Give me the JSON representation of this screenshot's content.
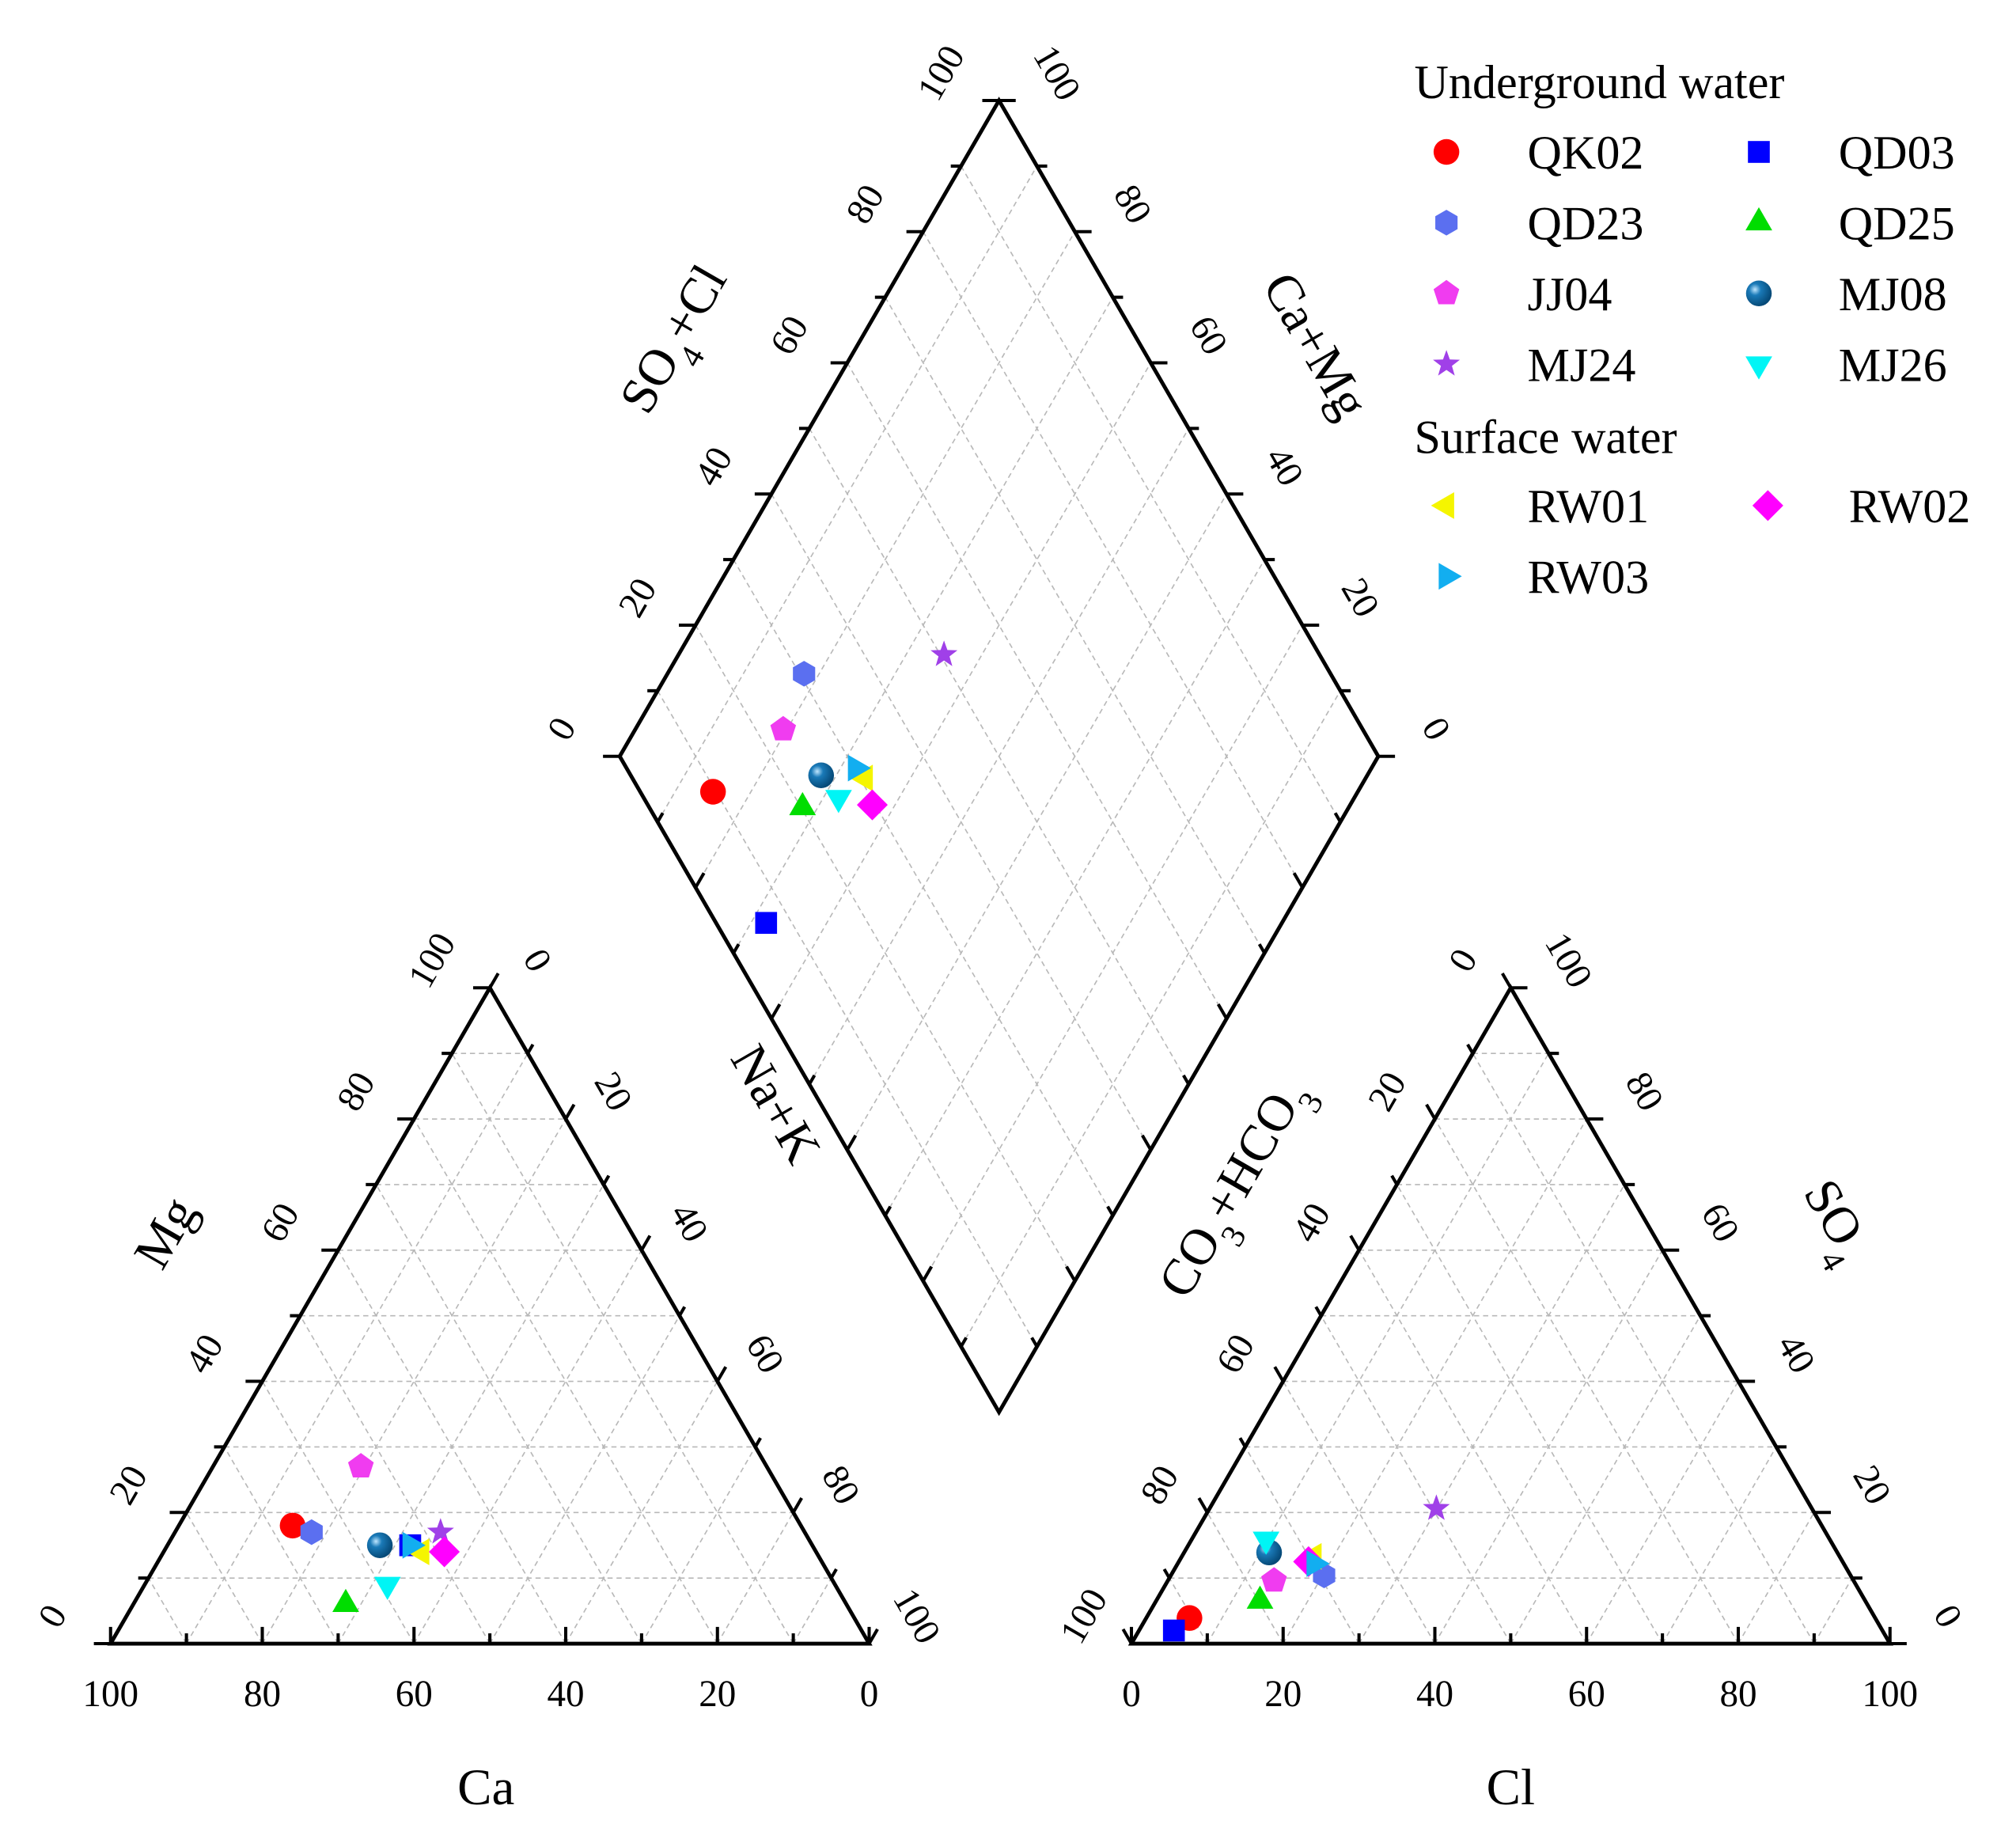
{
  "chart_data": {
    "type": "piper",
    "tick_labels": [
      "0",
      "20",
      "40",
      "60",
      "80",
      "100"
    ],
    "axes": {
      "cation_triangle": {
        "bottom": "Ca",
        "left": "Mg",
        "right": "Na+K"
      },
      "anion_triangle": {
        "bottom": "Cl",
        "left": "CO3+HCO3",
        "right": "SO4"
      },
      "diamond": {
        "upper_left": "SO4+Cl",
        "upper_right": "Ca+Mg"
      }
    },
    "legend": {
      "placement": "top-right",
      "groups": [
        {
          "title": "Underground water",
          "items": [
            "QK02",
            "QD03",
            "QD23",
            "QD25",
            "JJ04",
            "MJ08",
            "MJ24",
            "MJ26"
          ]
        },
        {
          "title": "Surface water",
          "items": [
            "RW01",
            "RW02",
            "RW03"
          ]
        }
      ]
    },
    "units": "percent of meq/L",
    "series": [
      {
        "name": "QK02",
        "marker": "circle",
        "color": "#ff0000",
        "Ca": 67,
        "Mg": 18,
        "NaK": 15,
        "CO3HCO3": 90.4,
        "SO4": 3.9,
        "Cl": 5.7
      },
      {
        "name": "QD03",
        "marker": "square",
        "color": "#0000ff",
        "Ca": 53,
        "Mg": 15,
        "NaK": 32,
        "CO3HCO3": 93.4,
        "SO4": 2.0,
        "Cl": 4.6
      },
      {
        "name": "QD23",
        "marker": "hexagon",
        "color": "#5b6ff0",
        "Ca": 65,
        "Mg": 17,
        "NaK": 18,
        "CO3HCO3": 69.4,
        "SO4": 10.4,
        "Cl": 20.2
      },
      {
        "name": "QD25",
        "marker": "triangle-up",
        "color": "#00dd00",
        "Ca": 66,
        "Mg": 6,
        "NaK": 28,
        "CO3HCO3": 79.8,
        "SO4": 6.5,
        "Cl": 13.7
      },
      {
        "name": "JJ04",
        "marker": "pentagon",
        "color": "#f03cf0",
        "Ca": 53.5,
        "Mg": 27,
        "NaK": 19.5,
        "CO3HCO3": 76.4,
        "SO4": 9.6,
        "Cl": 14.0
      },
      {
        "name": "MJ08",
        "marker": "sphere",
        "color": "#0a6aa0",
        "Ca": 57,
        "Mg": 15,
        "NaK": 28,
        "CO3HCO3": 74.9,
        "SO4": 13.9,
        "Cl": 11.2
      },
      {
        "name": "MJ24",
        "marker": "star",
        "color": "#a040e8",
        "Ca": 48,
        "Mg": 17,
        "NaK": 35,
        "CO3HCO3": 49.5,
        "SO4": 20.6,
        "Cl": 29.9
      },
      {
        "name": "MJ26",
        "marker": "triangle-down",
        "color": "#00f5f5",
        "Ca": 59,
        "Mg": 9,
        "NaK": 32,
        "CO3HCO3": 74.3,
        "SO4": 15.9,
        "Cl": 9.8
      },
      {
        "name": "RW01",
        "marker": "triangle-left",
        "color": "#f5f500",
        "Ca": 52,
        "Mg": 14,
        "NaK": 34,
        "CO3HCO3": 69.3,
        "SO4": 13.3,
        "Cl": 17.4
      },
      {
        "name": "RW02",
        "marker": "diamond",
        "color": "#ff00ff",
        "Ca": 49,
        "Mg": 14,
        "NaK": 37,
        "CO3HCO3": 70.4,
        "SO4": 12.5,
        "Cl": 17.1
      },
      {
        "name": "RW03",
        "marker": "triangle-right",
        "color": "#12aef0",
        "Ca": 53,
        "Mg": 15,
        "NaK": 32,
        "CO3HCO3": 69.8,
        "SO4": 12.2,
        "Cl": 18.0
      }
    ]
  }
}
